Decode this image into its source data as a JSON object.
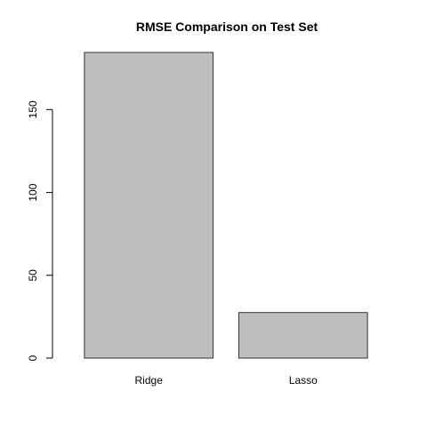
{
  "chart_data": {
    "type": "bar",
    "title": "RMSE Comparison on Test Set",
    "xlabel": "",
    "ylabel": "",
    "categories": [
      "Ridge",
      "Lasso"
    ],
    "values": [
      184.5,
      27.5
    ],
    "ylim": [
      0,
      184.5
    ],
    "yticks": [
      0,
      50,
      100,
      150
    ],
    "ytick_labels": [
      "0",
      "50",
      "100",
      "150"
    ],
    "bar_color": "#bebebe",
    "bar_border_color": "#333333",
    "grid": false,
    "legend": "none"
  }
}
